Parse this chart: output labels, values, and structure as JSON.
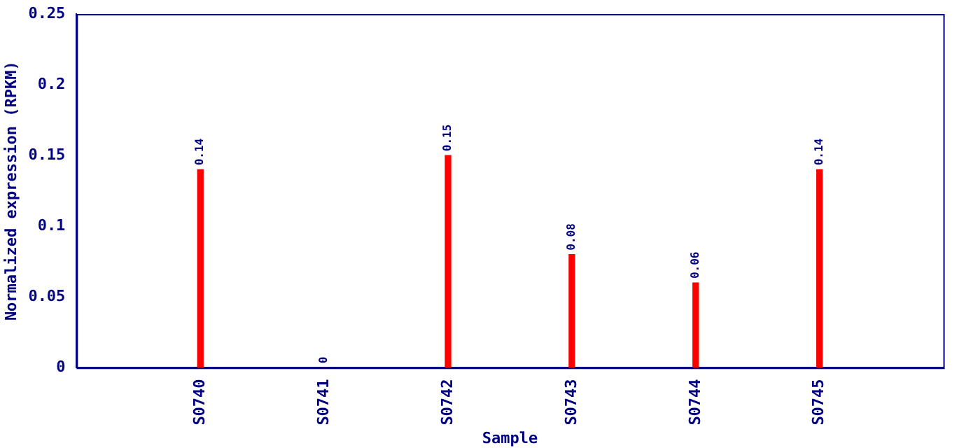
{
  "chart_data": {
    "type": "bar",
    "xlabel": "Sample",
    "ylabel": "Normalized expression (RPKM)",
    "categories": [
      "S0740",
      "S0741",
      "S0742",
      "S0743",
      "S0744",
      "S0745"
    ],
    "values": [
      0.14,
      0,
      0.15,
      0.08,
      0.06,
      0.14
    ],
    "color": "#ff0000",
    "ylim": [
      0,
      0.25
    ],
    "yticks": [
      0,
      0.05,
      0.1,
      0.15,
      0.2,
      0.25
    ],
    "grid": false,
    "legend": false,
    "data_labels": true
  }
}
